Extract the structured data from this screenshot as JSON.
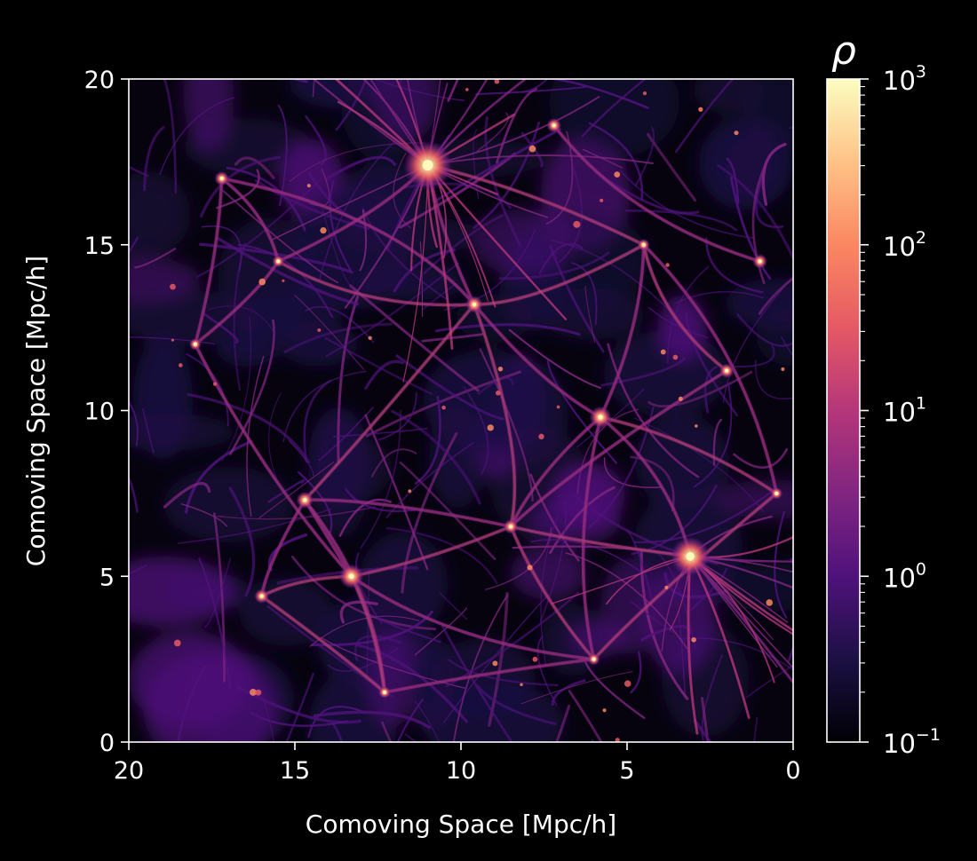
{
  "chart_data": {
    "type": "heatmap",
    "title": "",
    "xlabel": "Comoving Space [Mpc/h]",
    "ylabel": "Comoving Space [Mpc/h]",
    "xlim": [
      20,
      0
    ],
    "ylim": [
      0,
      20
    ],
    "x_ticks": [
      "20",
      "15",
      "10",
      "5",
      "0"
    ],
    "y_ticks": [
      "0",
      "5",
      "10",
      "15",
      "20"
    ],
    "colorbar": {
      "label": "ρ",
      "scale": "log",
      "range": [
        0.1,
        1000
      ],
      "colormap": "magma",
      "ticks": [
        {
          "base": "10",
          "exp": "−1",
          "value": 0.1
        },
        {
          "base": "10",
          "exp": "0",
          "value": 1
        },
        {
          "base": "10",
          "exp": "1",
          "value": 10
        },
        {
          "base": "10",
          "exp": "2",
          "value": 100
        },
        {
          "base": "10",
          "exp": "3",
          "value": 1000
        }
      ]
    },
    "colors": {
      "background": "#000000",
      "axes": "#ffffff",
      "magma": [
        "#000004",
        "#1c1044",
        "#4f127b",
        "#812581",
        "#b5367a",
        "#e55964",
        "#fb8761",
        "#fec287",
        "#fcfdbf"
      ]
    }
  }
}
